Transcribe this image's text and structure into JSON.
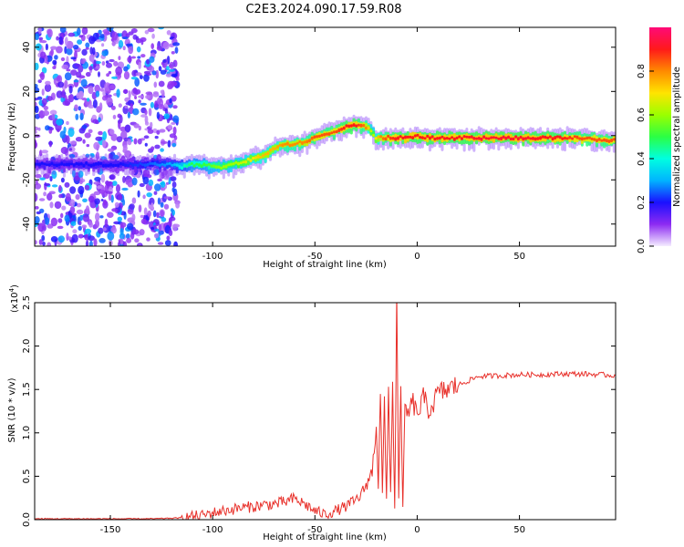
{
  "title": "C2E3.2024.090.17.59.R08",
  "chart_data": [
    {
      "type": "heatmap",
      "xlabel": "Height of straight line (km)",
      "ylabel": "Frequency (Hz)",
      "xlim": [
        -187,
        97
      ],
      "ylim": [
        -50,
        49
      ],
      "xticks": [
        -150,
        -100,
        -50,
        0,
        50
      ],
      "yticks": [
        -40,
        -20,
        0,
        20,
        40
      ],
      "xtick_labels": [
        "-150",
        "-100",
        "-50",
        "0",
        "50"
      ],
      "ytick_labels": [
        "-40",
        "-20",
        "0",
        "20",
        "40"
      ],
      "colorbar": {
        "label": "Normalized spectral amplitude",
        "range": [
          0,
          1
        ],
        "ticks": [
          0.0,
          0.2,
          0.4,
          0.6,
          0.8
        ],
        "tick_labels": [
          "0.0",
          "0.2",
          "0.4",
          "0.6",
          "0.8"
        ],
        "colors": [
          "#f4ecff",
          "#8d2bf2",
          "#1a10ff",
          "#00b4ff",
          "#00ffe0",
          "#2bff44",
          "#9bff00",
          "#ffe400",
          "#ff8a00",
          "#ff1a1a",
          "#ff0a78"
        ]
      },
      "noise_region": {
        "x_range": [
          -187,
          -117
        ],
        "level": 0.25
      },
      "ridge": {
        "x": [
          -187,
          -175,
          -160,
          -145,
          -130,
          -120,
          -115,
          -110,
          -105,
          -100,
          -95,
          -90,
          -85,
          -80,
          -75,
          -70,
          -65,
          -60,
          -55,
          -50,
          -45,
          -40,
          -35,
          -30,
          -25,
          -22,
          -20,
          -18,
          -15,
          -10,
          -5,
          0,
          5,
          10,
          20,
          30,
          40,
          50,
          60,
          70,
          80,
          90,
          97
        ],
        "freq": [
          -13,
          -13,
          -13,
          -13,
          -13,
          -13,
          -14,
          -13,
          -13,
          -14,
          -14,
          -13,
          -12,
          -10,
          -9,
          -6,
          -4,
          -4,
          -3,
          -1,
          1,
          2,
          4,
          5,
          4,
          2,
          -2,
          -1,
          -1,
          -1,
          -1,
          0,
          -1,
          -1,
          -1,
          -1,
          -1,
          -1,
          -1,
          -1,
          -1,
          -2,
          -2
        ],
        "amplitude": [
          0.2,
          0.2,
          0.2,
          0.2,
          0.25,
          0.3,
          0.4,
          0.5,
          0.5,
          0.55,
          0.6,
          0.6,
          0.65,
          0.7,
          0.75,
          0.75,
          0.8,
          0.8,
          0.8,
          0.85,
          0.85,
          0.85,
          0.9,
          0.9,
          0.8,
          0.6,
          0.7,
          0.8,
          0.85,
          0.9,
          0.9,
          0.9,
          0.9,
          0.9,
          0.9,
          0.92,
          0.92,
          0.92,
          0.9,
          0.9,
          0.85,
          0.85,
          0.85
        ]
      }
    },
    {
      "type": "line",
      "xlabel": "Height of straight line (km)",
      "ylabel": "SNR (10 * v/v)",
      "yscale_label": "(x10",
      "yscale_exp": "4",
      "yscale_close": ")",
      "xlim": [
        -187,
        97
      ],
      "ylim": [
        0.0,
        2.5
      ],
      "xticks": [
        -150,
        -100,
        -50,
        0,
        50
      ],
      "yticks": [
        0.0,
        0.5,
        1.0,
        1.5,
        2.0,
        2.5
      ],
      "xtick_labels": [
        "-150",
        "-100",
        "-50",
        "0",
        "50"
      ],
      "ytick_labels": [
        "0.0",
        "0.5",
        "1.0",
        "1.5",
        "2.0",
        "2.5"
      ],
      "color": "#e8302a",
      "series": [
        {
          "x": [
            -187,
            -170,
            -150,
            -130,
            -115,
            -110,
            -105,
            -100,
            -95,
            -90,
            -85,
            -80,
            -75,
            -70,
            -65,
            -60,
            -55,
            -50,
            -45,
            -40,
            -35,
            -30,
            -27,
            -25,
            -22,
            -20,
            -19,
            -18,
            -17,
            -16,
            -15,
            -14,
            -13,
            -12,
            -11,
            -10,
            -9,
            -8,
            -7,
            -6,
            -5,
            -2,
            0,
            3,
            6,
            10,
            15,
            20,
            25,
            30,
            40,
            50,
            60,
            70,
            80,
            90,
            97
          ],
          "y": [
            0.01,
            0.01,
            0.01,
            0.01,
            0.02,
            0.04,
            0.05,
            0.08,
            0.1,
            0.12,
            0.14,
            0.15,
            0.17,
            0.18,
            0.2,
            0.24,
            0.18,
            0.1,
            0.06,
            0.1,
            0.15,
            0.22,
            0.3,
            0.4,
            0.55,
            1.1,
            0.4,
            1.5,
            0.3,
            1.3,
            0.2,
            1.5,
            0.3,
            1.6,
            0.1,
            2.55,
            0.2,
            1.6,
            0.1,
            1.3,
            1.2,
            1.35,
            1.2,
            1.4,
            1.25,
            1.45,
            1.5,
            1.55,
            1.6,
            1.65,
            1.66,
            1.67,
            1.67,
            1.68,
            1.68,
            1.67,
            1.66
          ]
        }
      ]
    }
  ]
}
